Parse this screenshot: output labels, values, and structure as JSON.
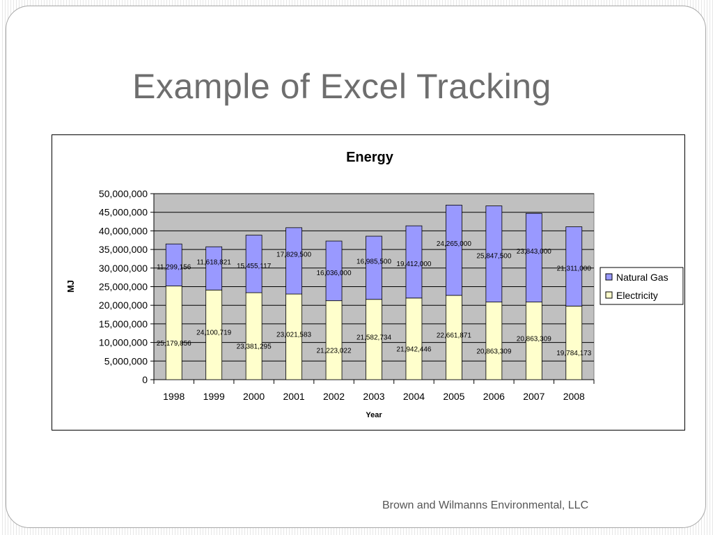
{
  "slide": {
    "title": "Example of Excel Tracking",
    "footer": "Brown and Wilmanns Environmental, LLC"
  },
  "colors": {
    "plot_background": "#c0c0c0",
    "electricity": "#ffffcc",
    "natural_gas": "#9999ff",
    "bar_outline": "#000000"
  },
  "chart_data": {
    "type": "bar",
    "stacked": true,
    "title": "Energy",
    "xlabel": "Year",
    "ylabel": "MJ",
    "ylim": [
      0,
      50000000
    ],
    "y_ticks": [
      "0",
      "5,000,000",
      "10,000,000",
      "15,000,000",
      "20,000,000",
      "25,000,000",
      "30,000,000",
      "35,000,000",
      "40,000,000",
      "45,000,000",
      "50,000,000"
    ],
    "y_tick_values": [
      0,
      5000000,
      10000000,
      15000000,
      20000000,
      25000000,
      30000000,
      35000000,
      40000000,
      45000000,
      50000000
    ],
    "grid": true,
    "legend_position": "right",
    "categories": [
      "1998",
      "1999",
      "2000",
      "2001",
      "2002",
      "2003",
      "2004",
      "2005",
      "2006",
      "2007",
      "2008"
    ],
    "series": [
      {
        "name": "Electricity",
        "values": [
          25179856,
          24100719,
          23381295,
          23021583,
          21223022,
          21582734,
          21942446,
          22661871,
          20863309,
          20863309,
          19784173
        ],
        "labels": [
          "25,179,856",
          "24,100,719",
          "23,381,295",
          "23,021,583",
          "21,223,022",
          "21,582,734",
          "21,942,446",
          "22,661,871",
          "20,863,309",
          "20,863,309",
          "19,784,173"
        ]
      },
      {
        "name": "Natural Gas",
        "values": [
          11299156,
          11618821,
          15455117,
          17829500,
          16036000,
          16985500,
          19412000,
          24265000,
          25847500,
          23843000,
          21311000
        ],
        "labels": [
          "11,299,156",
          "11,618,821",
          "15,455,117",
          "17,829,500",
          "16,036,000",
          "16,985,500",
          "19,412,000",
          "24,265,000",
          "25,847,500",
          "23,843,000",
          "21,311,000"
        ]
      }
    ],
    "legend": [
      "Natural Gas",
      "Electricity"
    ]
  }
}
